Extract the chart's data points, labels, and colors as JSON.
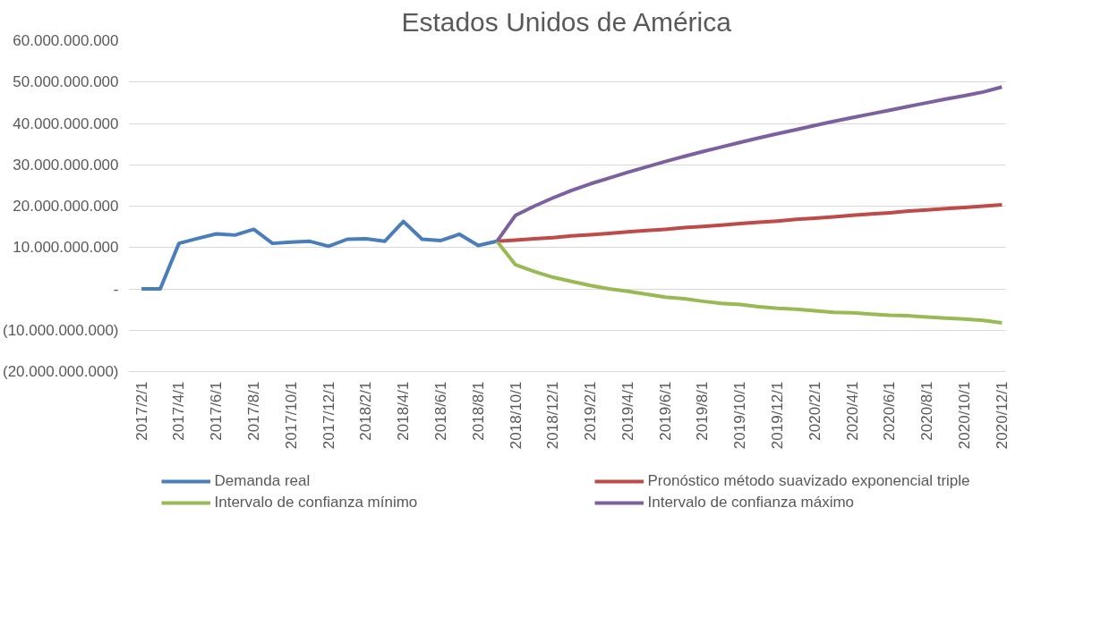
{
  "chart_data": {
    "type": "line",
    "title": "Estados Unidos de América",
    "categories": [
      "2017/2/1",
      null,
      "2017/4/1",
      null,
      "2017/6/1",
      null,
      "2017/8/1",
      null,
      "2017/10/1",
      null,
      "2017/12/1",
      null,
      "2018/2/1",
      null,
      "2018/4/1",
      null,
      "2018/6/1",
      null,
      "2018/8/1",
      null,
      "2018/10/1",
      null,
      "2018/12/1",
      null,
      "2019/2/1",
      null,
      "2019/4/1",
      null,
      "2019/6/1",
      null,
      "2019/8/1",
      null,
      "2019/10/1",
      null,
      "2019/12/1",
      null,
      "2020/2/1",
      null,
      "2020/4/1",
      null,
      "2020/6/1",
      null,
      "2020/8/1",
      null,
      "2020/10/1",
      null,
      "2020/12/1"
    ],
    "series": [
      {
        "name": "Demanda real",
        "color": "#4a7ebb",
        "values": [
          0,
          0,
          11000000000,
          12200000000,
          13300000000,
          13000000000,
          14400000000,
          11000000000,
          11300000000,
          11500000000,
          10300000000,
          12000000000,
          12100000000,
          11500000000,
          16300000000,
          12000000000,
          11700000000,
          13200000000,
          10500000000,
          11500000000,
          null,
          null,
          null,
          null,
          null,
          null,
          null,
          null,
          null,
          null,
          null,
          null,
          null,
          null,
          null,
          null,
          null,
          null,
          null,
          null,
          null,
          null,
          null,
          null,
          null,
          null,
          null
        ]
      },
      {
        "name": "Pronóstico método suavizado exponencial triple",
        "color": "#be4b48",
        "values": [
          null,
          null,
          null,
          null,
          null,
          null,
          null,
          null,
          null,
          null,
          null,
          null,
          null,
          null,
          null,
          null,
          null,
          null,
          null,
          11500000000,
          11800000000,
          12100000000,
          12400000000,
          12800000000,
          13100000000,
          13400000000,
          13800000000,
          14100000000,
          14400000000,
          14800000000,
          15100000000,
          15400000000,
          15800000000,
          16100000000,
          16400000000,
          16800000000,
          17100000000,
          17400000000,
          17800000000,
          18100000000,
          18400000000,
          18800000000,
          19100000000,
          19400000000,
          19700000000,
          20000000000,
          20300000000
        ]
      },
      {
        "name": "Intervalo de confianza mínimo",
        "color": "#98b954",
        "values": [
          null,
          null,
          null,
          null,
          null,
          null,
          null,
          null,
          null,
          null,
          null,
          null,
          null,
          null,
          null,
          null,
          null,
          null,
          null,
          11500000000,
          5800000000,
          4200000000,
          2800000000,
          1800000000,
          800000000,
          0,
          -600000000,
          -1300000000,
          -2000000000,
          -2400000000,
          -3000000000,
          -3500000000,
          -3800000000,
          -4300000000,
          -4700000000,
          -4900000000,
          -5300000000,
          -5700000000,
          -5800000000,
          -6100000000,
          -6400000000,
          -6500000000,
          -6800000000,
          -7100000000,
          -7300000000,
          -7600000000,
          -8200000000
        ]
      },
      {
        "name": "Intervalo de confianza máximo",
        "color": "#7d60a0",
        "values": [
          null,
          null,
          null,
          null,
          null,
          null,
          null,
          null,
          null,
          null,
          null,
          null,
          null,
          null,
          null,
          null,
          null,
          null,
          null,
          11500000000,
          17800000000,
          20000000000,
          22000000000,
          23800000000,
          25400000000,
          26800000000,
          28200000000,
          29500000000,
          30800000000,
          32000000000,
          33200000000,
          34300000000,
          35400000000,
          36500000000,
          37500000000,
          38500000000,
          39500000000,
          40500000000,
          41400000000,
          42300000000,
          43200000000,
          44100000000,
          45000000000,
          45900000000,
          46700000000,
          47600000000,
          48800000000
        ]
      }
    ],
    "ylim": [
      -20000000000,
      60000000000
    ],
    "yticks": [
      {
        "value": -20000000000,
        "label": "(20.000.000.000)"
      },
      {
        "value": -10000000000,
        "label": "(10.000.000.000)"
      },
      {
        "value": 0,
        "label": "-"
      },
      {
        "value": 10000000000,
        "label": "10.000.000.000"
      },
      {
        "value": 20000000000,
        "label": "20.000.000.000"
      },
      {
        "value": 30000000000,
        "label": "30.000.000.000"
      },
      {
        "value": 40000000000,
        "label": "40.000.000.000"
      },
      {
        "value": 50000000000,
        "label": "50.000.000.000"
      },
      {
        "value": 60000000000,
        "label": "60.000.000.000"
      }
    ],
    "grid": "y",
    "legend": "bottom",
    "marker": "none",
    "line_style": "solid"
  }
}
